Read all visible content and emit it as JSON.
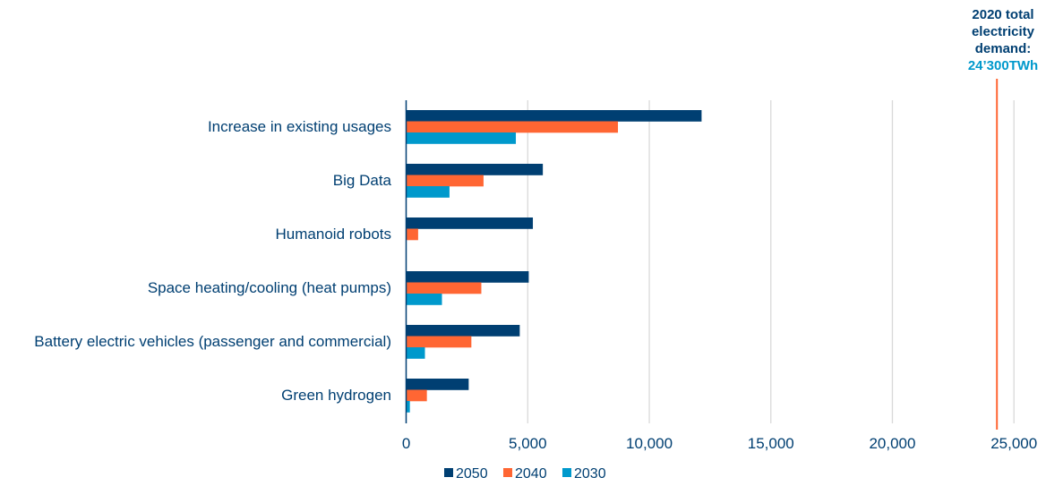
{
  "chart_data": {
    "type": "bar",
    "orientation": "horizontal",
    "categories": [
      "Increase in existing usages",
      "Big Data",
      "Humanoid robots",
      "Space heating/cooling (heat pumps)",
      "Battery electric vehicles (passenger and commercial)",
      "Green hydrogen"
    ],
    "series": [
      {
        "name": "2050",
        "color": "#003f72",
        "values": [
          12150,
          5620,
          5210,
          5040,
          4670,
          2570
        ]
      },
      {
        "name": "2040",
        "color": "#ff6633",
        "values": [
          8710,
          3180,
          490,
          3090,
          2680,
          850
        ]
      },
      {
        "name": "2030",
        "color": "#0099cc",
        "values": [
          4510,
          1780,
          0,
          1470,
          770,
          150
        ]
      }
    ],
    "xlim": [
      0,
      25000
    ],
    "xticks": [
      0,
      5000,
      10000,
      15000,
      20000,
      25000
    ],
    "xtick_labels": [
      "0",
      "5,000",
      "10,000",
      "15,000",
      "20,000",
      "25,000"
    ],
    "grid": "vertical",
    "legend": "bottom",
    "reference_line": {
      "value": 24300,
      "color": "#ff6633",
      "label_lines": [
        "2020 total",
        "electricity",
        "demand:"
      ],
      "label_value": "24’300TWh"
    }
  }
}
